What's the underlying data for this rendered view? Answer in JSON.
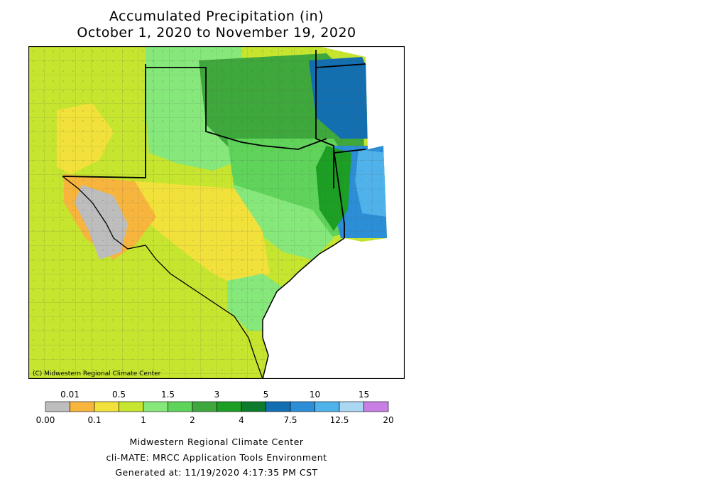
{
  "title": {
    "line1": "Accumulated Precipitation (in)",
    "line2": "October 1, 2020 to November 19, 2020"
  },
  "map": {
    "copyright": "(C) Midwestern Regional Climate Center"
  },
  "legend": {
    "top_labels": [
      "0.01",
      "0.5",
      "1.5",
      "3",
      "5",
      "10",
      "15"
    ],
    "bottom_labels": [
      "0.00",
      "0.1",
      "1",
      "2",
      "4",
      "7.5",
      "12.5",
      "20"
    ],
    "colors": [
      "#bdbdbd",
      "#f7b53d",
      "#f2e13a",
      "#c6e52f",
      "#86e87a",
      "#5fd35a",
      "#3fa83c",
      "#1d9e24",
      "#0e7a2b",
      "#146fb1",
      "#2b8ed6",
      "#4fb2ea",
      "#a9d7f2",
      "#c77fe3"
    ]
  },
  "footer": {
    "line1": "Midwestern Regional Climate Center",
    "line2": "cli-MATE: MRCC Application Tools Environment",
    "line3": "Generated at: 11/19/2020 4:17:35 PM CST"
  }
}
